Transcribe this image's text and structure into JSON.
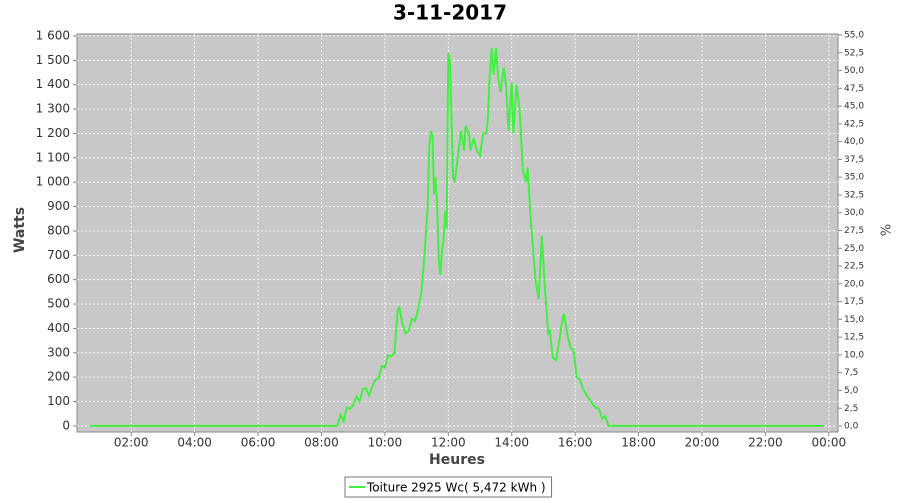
{
  "chart_data": {
    "type": "line",
    "title": "3-11-2017",
    "x_label": "Heures",
    "y_label": "Watts",
    "y2_label": "%",
    "x": [
      0.7,
      8.5,
      8.6,
      8.7,
      8.8,
      8.9,
      9.0,
      9.1,
      9.2,
      9.3,
      9.4,
      9.5,
      9.6,
      9.7,
      9.8,
      9.9,
      10.0,
      10.1,
      10.2,
      10.3,
      10.4,
      10.45,
      10.55,
      10.65,
      10.75,
      10.85,
      10.95,
      11.05,
      11.15,
      11.25,
      11.35,
      11.4,
      11.45,
      11.5,
      11.55,
      11.6,
      11.65,
      11.7,
      11.75,
      11.8,
      11.85,
      11.9,
      11.95,
      12.0,
      12.05,
      12.15,
      12.2,
      12.3,
      12.4,
      12.5,
      12.55,
      12.65,
      12.7,
      12.8,
      12.9,
      13.0,
      13.1,
      13.2,
      13.25,
      13.3,
      13.37,
      13.43,
      13.5,
      13.58,
      13.65,
      13.75,
      13.82,
      13.9,
      14.0,
      14.05,
      14.15,
      14.25,
      14.35,
      14.45,
      14.5,
      14.6,
      14.75,
      14.85,
      14.95,
      15.05,
      15.15,
      15.2,
      15.3,
      15.4,
      15.5,
      15.6,
      15.65,
      15.75,
      15.85,
      15.95,
      16.05,
      16.15,
      16.25,
      16.35,
      16.45,
      16.55,
      16.65,
      16.75,
      16.85,
      16.95,
      17.05,
      23.85
    ],
    "series": [
      {
        "name": "Toiture 2925 Wc( 5,472 kWh )",
        "color": "#44ee44",
        "values": [
          0,
          0,
          45,
          20,
          75,
          70,
          85,
          120,
          100,
          150,
          155,
          125,
          160,
          190,
          195,
          245,
          240,
          290,
          285,
          300,
          470,
          490,
          420,
          380,
          390,
          440,
          430,
          480,
          550,
          700,
          900,
          1150,
          1210,
          1190,
          950,
          1020,
          900,
          680,
          620,
          720,
          760,
          880,
          810,
          1530,
          1500,
          1020,
          1000,
          1100,
          1210,
          1130,
          1230,
          1200,
          1130,
          1180,
          1130,
          1110,
          1200,
          1200,
          1260,
          1420,
          1550,
          1440,
          1550,
          1420,
          1370,
          1470,
          1400,
          1210,
          1410,
          1200,
          1400,
          1300,
          1050,
          1000,
          1060,
          850,
          600,
          520,
          780,
          560,
          380,
          390,
          280,
          270,
          350,
          440,
          460,
          380,
          320,
          310,
          200,
          190,
          150,
          130,
          110,
          90,
          75,
          70,
          30,
          40,
          0,
          0
        ]
      }
    ],
    "xlim": [
      0.29,
      24.29
    ],
    "xticks": [
      {
        "value": 2,
        "label": "02:00"
      },
      {
        "value": 4,
        "label": "04:00"
      },
      {
        "value": 6,
        "label": "06:00"
      },
      {
        "value": 8,
        "label": "08:00"
      },
      {
        "value": 10,
        "label": "10:00"
      },
      {
        "value": 12,
        "label": "12:00"
      },
      {
        "value": 14,
        "label": "14:00"
      },
      {
        "value": 16,
        "label": "16:00"
      },
      {
        "value": 18,
        "label": "18:00"
      },
      {
        "value": 20,
        "label": "20:00"
      },
      {
        "value": 22,
        "label": "22:00"
      },
      {
        "value": 24,
        "label": "00:00"
      }
    ],
    "ylim": [
      -25,
      1608
    ],
    "yticks": [
      0,
      100,
      200,
      300,
      400,
      500,
      600,
      700,
      800,
      900,
      {
        "value": 1000,
        "label": "1 000"
      },
      {
        "value": 1100,
        "label": "1 100"
      },
      {
        "value": 1200,
        "label": "1 200"
      },
      {
        "value": 1300,
        "label": "1 300"
      },
      {
        "value": 1400,
        "label": "1 400"
      },
      {
        "value": 1500,
        "label": "1 500"
      },
      {
        "value": 1600,
        "label": "1 600"
      }
    ],
    "y2lim": [
      -0.84,
      55.14
    ],
    "y2ticks": [
      {
        "value": 0,
        "label": "0,0"
      },
      {
        "value": 2.5,
        "label": "2,5"
      },
      {
        "value": 5,
        "label": "5,0"
      },
      {
        "value": 7.5,
        "label": "7,5"
      },
      {
        "value": 10,
        "label": "10,0"
      },
      {
        "value": 12.5,
        "label": "12,5"
      },
      {
        "value": 15,
        "label": "15,0"
      },
      {
        "value": 17.5,
        "label": "17,5"
      },
      {
        "value": 20,
        "label": "20,0"
      },
      {
        "value": 22.5,
        "label": "22,5"
      },
      {
        "value": 25,
        "label": "25,0"
      },
      {
        "value": 27.5,
        "label": "27,5"
      },
      {
        "value": 30,
        "label": "30,0"
      },
      {
        "value": 32.5,
        "label": "32,5"
      },
      {
        "value": 35,
        "label": "35,0"
      },
      {
        "value": 37.5,
        "label": "37,5"
      },
      {
        "value": 40,
        "label": "40,0"
      },
      {
        "value": 42.5,
        "label": "42,5"
      },
      {
        "value": 45,
        "label": "45,0"
      },
      {
        "value": 47.5,
        "label": "47,5"
      },
      {
        "value": 50,
        "label": "50,0"
      },
      {
        "value": 52.5,
        "label": "52,5"
      },
      {
        "value": 55,
        "label": "55,0"
      }
    ],
    "grid": true,
    "plot_background": "#c8c8c8"
  }
}
